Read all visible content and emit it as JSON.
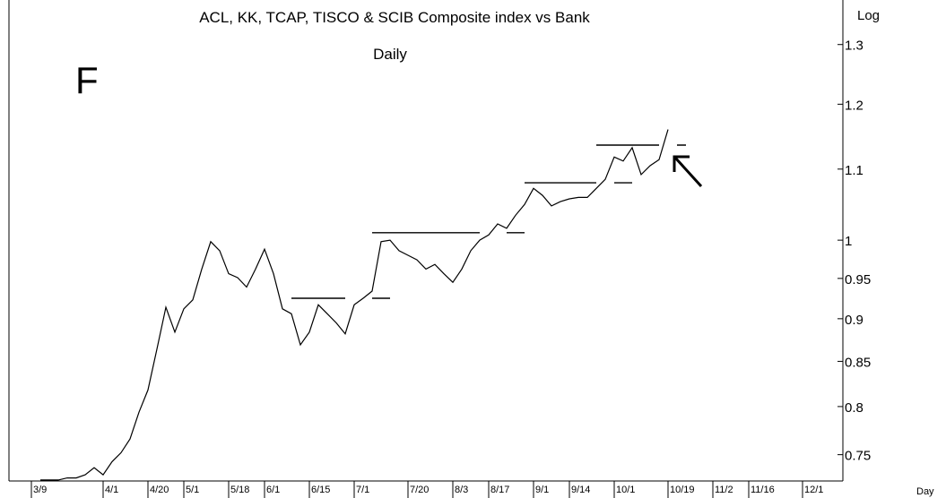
{
  "chart_data": {
    "type": "line",
    "title": "ACL, KK, TCAP, TISCO & SCIB Composite index vs Bank",
    "subtitle": "Daily",
    "annotation": "F",
    "ylabel": "Log",
    "xlabel": "Day",
    "log_scale": true,
    "ylim": [
      0.724,
      1.38
    ],
    "yticks": [
      1.3,
      1.2,
      1.1,
      1,
      0.95,
      0.9,
      0.85,
      0.8,
      0.75
    ],
    "categories": [
      null,
      null,
      "3/9",
      null,
      null,
      null,
      null,
      null,
      null,
      null,
      "4/1",
      null,
      null,
      null,
      null,
      "4/20",
      null,
      null,
      null,
      "5/1",
      null,
      null,
      null,
      null,
      "5/18",
      null,
      null,
      null,
      "6/1",
      null,
      null,
      null,
      null,
      "6/15",
      null,
      null,
      null,
      null,
      "7/1",
      null,
      null,
      null,
      null,
      null,
      "7/20",
      null,
      null,
      null,
      null,
      "8/3",
      null,
      null,
      null,
      "8/17",
      null,
      null,
      null,
      null,
      "9/1",
      null,
      null,
      null,
      "9/14",
      null,
      null,
      null,
      null,
      "10/1",
      null,
      null,
      null,
      null,
      null,
      "10/19",
      null,
      null,
      null,
      null,
      "11/2",
      null,
      null,
      null,
      "11/16",
      null,
      null,
      null,
      null,
      null,
      "12/1",
      null,
      null,
      null,
      null
    ],
    "series": [
      {
        "color": "#000000",
        "values": [
          null,
          null,
          null,
          0.725,
          0.725,
          0.725,
          0.727,
          0.727,
          0.73,
          0.737,
          0.73,
          0.743,
          0.752,
          0.766,
          0.794,
          0.818,
          0.864,
          0.914,
          0.884,
          0.912,
          0.923,
          0.962,
          0.998,
          0.986,
          0.956,
          0.951,
          0.939,
          0.962,
          0.988,
          0.956,
          0.912,
          0.906,
          0.869,
          0.884,
          0.917,
          0.906,
          0.895,
          0.882,
          0.917,
          0.925,
          0.934,
          0.998,
          1.0,
          0.986,
          0.98,
          0.974,
          0.962,
          0.968,
          0.956,
          0.945,
          0.962,
          0.986,
          1.0,
          1.007,
          1.022,
          1.016,
          1.034,
          1.049,
          1.072,
          1.062,
          1.047,
          1.053,
          1.057,
          1.059,
          1.059,
          1.072,
          1.085,
          1.118,
          1.112,
          1.132,
          1.092,
          1.105,
          1.114,
          1.16,
          null,
          null,
          null,
          null,
          null,
          null,
          null,
          null,
          null,
          null,
          null,
          null,
          null,
          null,
          null,
          null,
          null,
          null,
          null
        ]
      },
      {
        "color": "#000000",
        "values": [
          null,
          null,
          null,
          null,
          null,
          null,
          null,
          null,
          null,
          null,
          null,
          null,
          null,
          null,
          null,
          null,
          null,
          null,
          null,
          null,
          null,
          null,
          null,
          null,
          null,
          null,
          null,
          null,
          null,
          null,
          null,
          0.925,
          0.925,
          0.925,
          0.925,
          0.925,
          0.925,
          0.925,
          null,
          null,
          0.925,
          0.925,
          0.925,
          null,
          null,
          null,
          null,
          null,
          null,
          null,
          null,
          null,
          null,
          null,
          null,
          null,
          null,
          null,
          null,
          null,
          null,
          null,
          null,
          null,
          null,
          null,
          null,
          null,
          null,
          null,
          null,
          null,
          null,
          null,
          null,
          null,
          null,
          null,
          null,
          null,
          null,
          null,
          null,
          null,
          null,
          null,
          null,
          null,
          null,
          null,
          null,
          null,
          null
        ]
      },
      {
        "color": "#000000",
        "values": [
          null,
          null,
          null,
          null,
          null,
          null,
          null,
          null,
          null,
          null,
          null,
          null,
          null,
          null,
          null,
          null,
          null,
          null,
          null,
          null,
          null,
          null,
          null,
          null,
          null,
          null,
          null,
          null,
          null,
          null,
          null,
          null,
          null,
          null,
          null,
          null,
          null,
          null,
          null,
          null,
          1.01,
          1.01,
          1.01,
          1.01,
          1.01,
          1.01,
          1.01,
          1.01,
          1.01,
          1.01,
          1.01,
          1.01,
          1.01,
          null,
          null,
          1.01,
          1.01,
          1.01,
          null,
          null,
          null,
          null,
          null,
          null,
          null,
          null,
          null,
          null,
          null,
          null,
          null,
          null,
          null,
          null,
          null,
          null,
          null,
          null,
          null,
          null,
          null,
          null,
          null,
          null,
          null,
          null,
          null,
          null,
          null,
          null,
          null,
          null,
          null
        ]
      },
      {
        "color": "#000000",
        "values": [
          null,
          null,
          null,
          null,
          null,
          null,
          null,
          null,
          null,
          null,
          null,
          null,
          null,
          null,
          null,
          null,
          null,
          null,
          null,
          null,
          null,
          null,
          null,
          null,
          null,
          null,
          null,
          null,
          null,
          null,
          null,
          null,
          null,
          null,
          null,
          null,
          null,
          null,
          null,
          null,
          null,
          null,
          null,
          null,
          null,
          null,
          null,
          null,
          null,
          null,
          null,
          null,
          null,
          null,
          null,
          null,
          null,
          1.08,
          1.08,
          1.08,
          1.08,
          1.08,
          1.08,
          1.08,
          1.08,
          1.08,
          null,
          1.08,
          1.08,
          1.08,
          null,
          null,
          null,
          null,
          null,
          null,
          null,
          null,
          null,
          null,
          null,
          null,
          null,
          null,
          null,
          null,
          null,
          null,
          null,
          null,
          null,
          null,
          null
        ]
      },
      {
        "color": "#000000",
        "values": [
          null,
          null,
          null,
          null,
          null,
          null,
          null,
          null,
          null,
          null,
          null,
          null,
          null,
          null,
          null,
          null,
          null,
          null,
          null,
          null,
          null,
          null,
          null,
          null,
          null,
          null,
          null,
          null,
          null,
          null,
          null,
          null,
          null,
          null,
          null,
          null,
          null,
          null,
          null,
          null,
          null,
          null,
          null,
          null,
          null,
          null,
          null,
          null,
          null,
          null,
          null,
          null,
          null,
          null,
          null,
          null,
          null,
          null,
          null,
          null,
          null,
          null,
          null,
          null,
          null,
          1.136,
          1.136,
          1.136,
          1.136,
          1.136,
          1.136,
          1.136,
          1.136,
          null,
          1.136,
          1.136,
          null,
          null,
          null,
          null,
          null,
          null,
          null,
          null,
          null,
          null,
          null,
          null,
          null,
          null,
          null,
          null,
          null
        ]
      }
    ]
  }
}
